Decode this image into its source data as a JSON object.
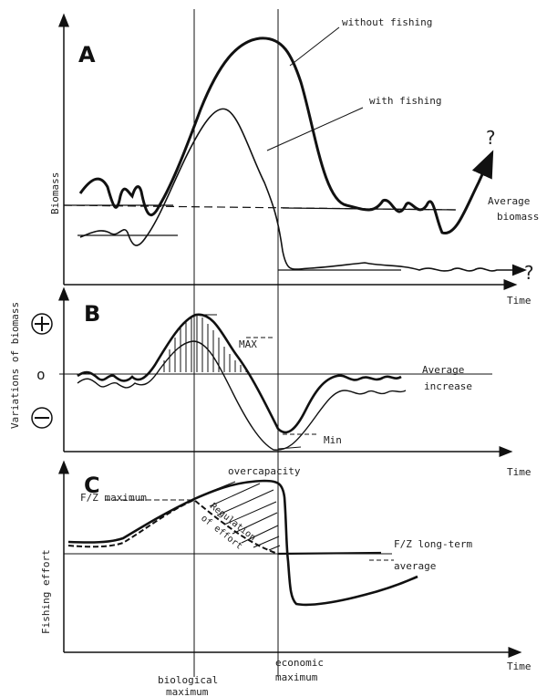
{
  "panels": {
    "a": {
      "letter": "A",
      "ylabel": "Biomass",
      "without_fishing": "without fishing",
      "with_fishing": "with fishing",
      "avg_line1": "Average",
      "avg_line2": "biomass",
      "time": "Time",
      "q1": "?",
      "q2": "?"
    },
    "b": {
      "letter": "B",
      "ylabel": "Variations of biomass",
      "max": "MAX",
      "min": "Min",
      "avg_line1": "Average",
      "avg_line2": "increase",
      "time": "Time",
      "zero": "o"
    },
    "c": {
      "letter": "C",
      "ylabel": "Fishing effort",
      "overcapacity": "overcapacity",
      "fz_max": "F/Z maximum",
      "regulation": "Regulation",
      "of_effort": "of effort",
      "fz_lt1": "F/Z long-term",
      "fz_lt2": "average",
      "time": "Time"
    }
  },
  "markers": {
    "bio1": "biological",
    "bio2": "maximum",
    "eco1": "economic",
    "eco2": "maximum"
  }
}
